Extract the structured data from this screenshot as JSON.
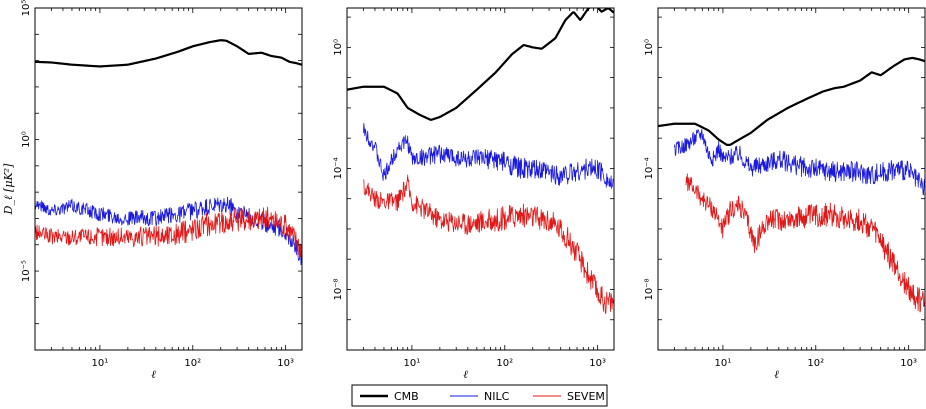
{
  "chart_data": [
    {
      "type": "line",
      "xscale": "log",
      "yscale": "log",
      "xlabel": "ℓ",
      "ylabel": "D_ℓ [μK²]",
      "xlim": [
        2,
        1500
      ],
      "ylim": [
        1e-08,
        100000.0
      ],
      "xticks": [
        {
          "value": 10,
          "label": "10¹"
        },
        {
          "value": 100,
          "label": "10²"
        },
        {
          "value": 1000,
          "label": "10³"
        }
      ],
      "yticks": [
        {
          "value": 1e-05,
          "label": "10⁻⁵"
        },
        {
          "value": 1,
          "label": "10⁰"
        },
        {
          "value": 100000,
          "label": "10⁵"
        }
      ],
      "series": [
        {
          "name": "CMB",
          "color": "#000000",
          "x": [
            2,
            3,
            5,
            10,
            20,
            40,
            70,
            100,
            150,
            200,
            230,
            300,
            400,
            550,
            700,
            900,
            1100,
            1300,
            1500
          ],
          "y": [
            900,
            850,
            700,
            600,
            700,
            1200,
            2200,
            3500,
            5000,
            6000,
            5700,
            3500,
            1800,
            2000,
            1500,
            1300,
            900,
            800,
            700
          ],
          "noise": 0
        },
        {
          "name": "NILC",
          "color": "#1a1adc",
          "x": [
            2,
            3,
            5,
            10,
            20,
            40,
            70,
            100,
            150,
            200,
            250,
            300,
            400,
            500,
            700,
            900,
            1100,
            1300,
            1500
          ],
          "y": [
            0.004,
            0.002,
            0.003,
            0.0015,
            0.001,
            0.001,
            0.0015,
            0.002,
            0.0025,
            0.003,
            0.003,
            0.002,
            0.0012,
            0.0008,
            0.0006,
            0.0004,
            0.0002,
            8e-05,
            3e-05
          ],
          "noise": 0.35
        },
        {
          "name": "SEVEM",
          "color": "#e01818",
          "x": [
            2,
            3,
            5,
            10,
            20,
            40,
            70,
            100,
            150,
            200,
            300,
            400,
            500,
            600,
            700,
            900,
            1100,
            1300,
            1500
          ],
          "y": [
            0.0003,
            0.0002,
            0.0002,
            0.0002,
            0.0002,
            0.0002,
            0.00025,
            0.0004,
            0.0006,
            0.0007,
            0.0009,
            0.001,
            0.001,
            0.0011,
            0.0009,
            0.0007,
            0.0004,
            0.00015,
            8e-05
          ],
          "noise": 0.45
        }
      ]
    },
    {
      "type": "line",
      "xscale": "log",
      "yscale": "log",
      "xlabel": "ℓ",
      "ylabel": "",
      "xlim": [
        2,
        1500
      ],
      "ylim": [
        1e-10,
        20
      ],
      "xticks": [
        {
          "value": 10,
          "label": "10¹"
        },
        {
          "value": 100,
          "label": "10²"
        },
        {
          "value": 1000,
          "label": "10³"
        }
      ],
      "yticks": [
        {
          "value": 1e-08,
          "label": "10⁻⁸"
        },
        {
          "value": 0.0001,
          "label": "10⁻⁴"
        },
        {
          "value": 1,
          "label": "10⁰"
        }
      ],
      "series": [
        {
          "name": "CMB",
          "color": "#000000",
          "x": [
            2,
            3,
            5,
            7,
            9,
            12,
            16,
            20,
            30,
            50,
            80,
            120,
            160,
            200,
            250,
            350,
            450,
            550,
            650,
            800,
            950,
            1100,
            1300,
            1500
          ],
          "y": [
            0.04,
            0.05,
            0.05,
            0.03,
            0.01,
            0.006,
            0.004,
            0.005,
            0.01,
            0.04,
            0.15,
            0.6,
            1.2,
            1.0,
            0.9,
            2,
            8,
            15,
            8,
            20,
            25,
            15,
            20,
            14
          ],
          "noise": 0
        },
        {
          "name": "NILC",
          "color": "#1a1adc",
          "x": [
            3,
            4,
            5,
            7,
            9,
            10,
            20,
            40,
            80,
            150,
            250,
            400,
            600,
            800,
            1000,
            1200,
            1500
          ],
          "y": [
            0.002,
            0.0005,
            5e-05,
            0.0005,
            0.0008,
            0.0002,
            0.0003,
            0.0002,
            0.0002,
            0.0001,
            8e-05,
            6e-05,
            8e-05,
            0.0001,
            0.0001,
            6e-05,
            2e-05
          ],
          "noise": 0.35
        },
        {
          "name": "SEVEM",
          "color": "#e01818",
          "x": [
            3,
            4,
            5,
            7,
            9,
            10,
            20,
            40,
            80,
            150,
            200,
            300,
            400,
            500,
            600,
            800,
            1000,
            1200,
            1500
          ],
          "y": [
            3e-05,
            1e-05,
            8e-06,
            8e-06,
            3e-05,
            8e-06,
            2e-06,
            1.5e-06,
            2e-06,
            3e-06,
            2.5e-06,
            1.8e-06,
            1e-06,
            4e-07,
            1.5e-07,
            3e-08,
            8e-09,
            4e-09,
            4e-09
          ],
          "noise": 0.4
        }
      ]
    },
    {
      "type": "line",
      "xscale": "log",
      "yscale": "log",
      "xlabel": "ℓ",
      "ylabel": "",
      "xlim": [
        2,
        1500
      ],
      "ylim": [
        1e-10,
        20
      ],
      "xticks": [
        {
          "value": 10,
          "label": "10¹"
        },
        {
          "value": 100,
          "label": "10²"
        },
        {
          "value": 1000,
          "label": "10³"
        }
      ],
      "yticks": [
        {
          "value": 1e-08,
          "label": "10⁻⁸"
        },
        {
          "value": 0.0001,
          "label": "10⁻⁴"
        },
        {
          "value": 1,
          "label": "10⁰"
        }
      ],
      "series": [
        {
          "name": "CMB",
          "color": "#000000",
          "x": [
            2,
            3,
            5,
            7,
            9,
            11,
            12,
            14,
            20,
            30,
            50,
            80,
            120,
            160,
            200,
            300,
            400,
            500,
            700,
            900,
            1100,
            1300,
            1500
          ],
          "y": [
            0.0025,
            0.003,
            0.003,
            0.0018,
            0.0009,
            0.0006,
            0.0006,
            0.0008,
            0.0015,
            0.004,
            0.01,
            0.02,
            0.035,
            0.045,
            0.05,
            0.08,
            0.15,
            0.12,
            0.25,
            0.4,
            0.45,
            0.4,
            0.35
          ],
          "noise": 0
        },
        {
          "name": "NILC",
          "color": "#1a1adc",
          "x": [
            3,
            4,
            5,
            6,
            7,
            8,
            9,
            10,
            15,
            20,
            40,
            80,
            150,
            250,
            400,
            600,
            800,
            1000,
            1200,
            1500
          ],
          "y": [
            0.0004,
            0.0006,
            0.001,
            0.0015,
            0.0003,
            0.0002,
            0.0005,
            0.0002,
            0.0003,
            0.0001,
            0.0002,
            0.0001,
            8e-05,
            8e-05,
            6e-05,
            8e-05,
            0.0001,
            8e-05,
            4e-05,
            2e-05
          ],
          "noise": 0.35
        },
        {
          "name": "SEVEM",
          "color": "#e01818",
          "x": [
            4,
            5,
            6,
            8,
            10,
            12,
            15,
            18,
            22,
            30,
            50,
            80,
            150,
            200,
            300,
            400,
            500,
            600,
            800,
            1000,
            1200,
            1500
          ],
          "y": [
            4e-05,
            2e-05,
            1e-05,
            4e-06,
            1e-06,
            4e-06,
            6e-06,
            2e-06,
            3e-07,
            2e-06,
            2e-06,
            2.5e-06,
            3e-06,
            2.5e-06,
            1.8e-06,
            1e-06,
            4e-07,
            1.5e-07,
            3e-08,
            1e-08,
            5e-09,
            4e-09
          ],
          "noise": 0.4
        }
      ]
    }
  ],
  "legend": [
    {
      "name": "CMB",
      "color": "#000000"
    },
    {
      "name": "NILC",
      "color": "#1a1adc"
    },
    {
      "name": "SEVEM",
      "color": "#e01818"
    }
  ]
}
